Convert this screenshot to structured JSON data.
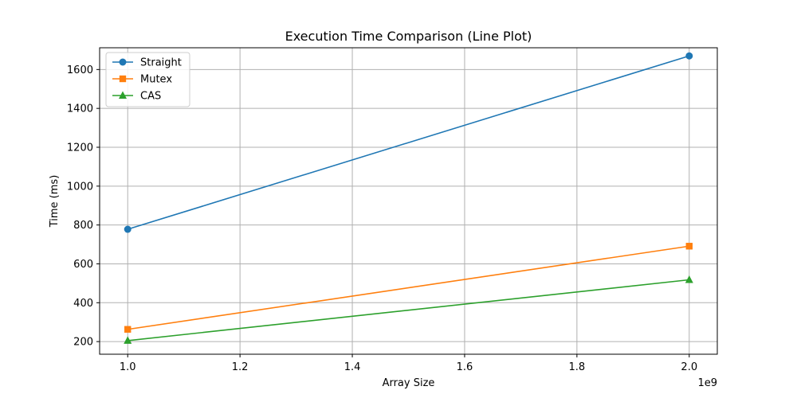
{
  "chart_data": {
    "type": "line",
    "title": "Execution Time Comparison (Line Plot)",
    "xlabel": "Array Size",
    "ylabel": "Time (ms)",
    "x_offset_label": "1e9",
    "x": [
      1.0,
      2.0
    ],
    "xlim": [
      0.95,
      2.05
    ],
    "ylim": [
      135,
      1712
    ],
    "xticks": [
      1.0,
      1.2,
      1.4,
      1.6,
      1.8,
      2.0
    ],
    "xtick_labels": [
      "1.0",
      "1.2",
      "1.4",
      "1.6",
      "1.8",
      "2.0"
    ],
    "yticks": [
      200,
      400,
      600,
      800,
      1000,
      1200,
      1400,
      1600
    ],
    "ytick_labels": [
      "200",
      "400",
      "600",
      "800",
      "1000",
      "1200",
      "1400",
      "1600"
    ],
    "grid": true,
    "legend_position": "top-left",
    "series": [
      {
        "name": "Straight",
        "values": [
          778,
          1670
        ],
        "color": "#1f77b4",
        "marker": "circle"
      },
      {
        "name": "Mutex",
        "values": [
          263,
          691
        ],
        "color": "#ff7f0e",
        "marker": "square"
      },
      {
        "name": "CAS",
        "values": [
          205,
          518
        ],
        "color": "#2ca02c",
        "marker": "triangle"
      }
    ]
  }
}
